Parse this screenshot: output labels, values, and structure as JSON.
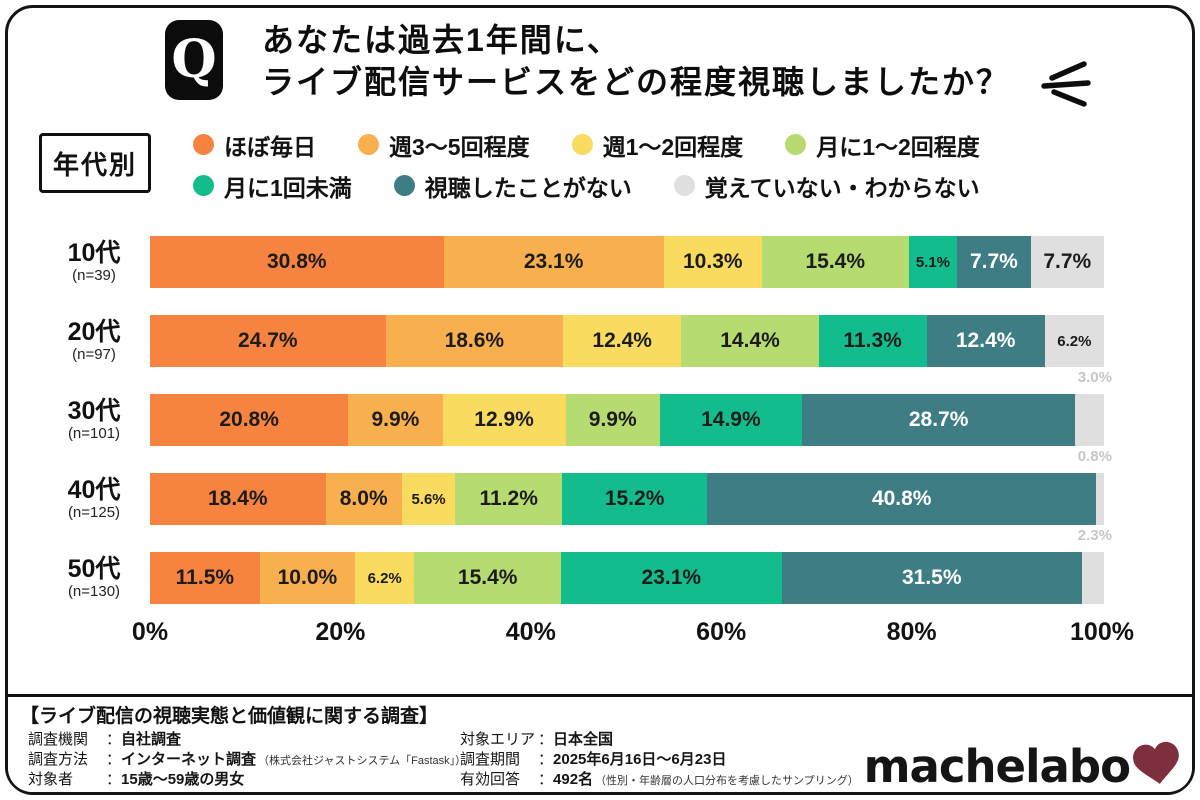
{
  "header": {
    "q_badge": "Q",
    "title_line1": "あなたは過去1年間に、",
    "title_line2": "ライブ配信サービスをどの程度視聴しましたか？"
  },
  "group_label": "年代別",
  "chart_data": {
    "type": "bar",
    "variant": "horizontal-stacked",
    "title": "あなたは過去1年間に、ライブ配信サービスをどの程度視聴しましたか？（年代別）",
    "categories": [
      "10代",
      "20代",
      "30代",
      "40代",
      "50代"
    ],
    "category_notes": [
      "(n=39)",
      "(n=97)",
      "(n=101)",
      "(n=125)",
      "(n=130)"
    ],
    "series": [
      {
        "name": "ほぼ毎日",
        "color": "#F6833F",
        "values": [
          30.8,
          24.7,
          20.8,
          18.4,
          11.5
        ]
      },
      {
        "name": "週3〜5回程度",
        "color": "#F8AF4D",
        "values": [
          23.1,
          18.6,
          9.9,
          8.0,
          10.0
        ]
      },
      {
        "name": "週1〜2回程度",
        "color": "#F9DB60",
        "values": [
          10.3,
          12.4,
          12.9,
          5.6,
          6.2
        ]
      },
      {
        "name": "月に1〜2回程度",
        "color": "#B6DC71",
        "values": [
          15.4,
          14.4,
          9.9,
          11.2,
          15.4
        ]
      },
      {
        "name": "月に1回未満",
        "color": "#12BC8C",
        "values": [
          5.1,
          11.3,
          14.9,
          15.2,
          23.1
        ]
      },
      {
        "name": "視聴したことがない",
        "color": "#3E7D84",
        "values": [
          7.7,
          12.4,
          28.7,
          40.8,
          31.5
        ]
      },
      {
        "name": "覚えていない・わからない",
        "color": "#DFDFDF",
        "values": [
          7.7,
          6.2,
          3.0,
          0.8,
          2.3
        ]
      }
    ],
    "x_ticks": [
      "0%",
      "20%",
      "40%",
      "60%",
      "80%",
      "100%"
    ],
    "xlim": [
      0,
      100
    ],
    "grid": false,
    "legend_position": "top",
    "value_suffix": "%",
    "white_label_series": [
      "視聴したことがない"
    ],
    "outside_label_color": "#c7c7c7"
  },
  "footer": {
    "survey_title": "【ライブ配信の視聴実態と価値観に関する調査】",
    "separator": "：",
    "info_left": [
      {
        "label": "調査機関",
        "value": "自社調査",
        "note": ""
      },
      {
        "label": "調査方法",
        "value": "インターネット調査",
        "note": "（株式会社ジャストシステム「Fastask」）"
      },
      {
        "label": "対象者",
        "value": "15歳〜59歳の男女",
        "note": ""
      }
    ],
    "info_right": [
      {
        "label": "対象エリア",
        "value": "日本全国",
        "note": ""
      },
      {
        "label": "調査期間",
        "value": "2025年6月16日〜6月23日",
        "note": ""
      },
      {
        "label": "有効回答",
        "value": "492名",
        "note": "（性別・年齢層の人口分布を考慮したサンプリング）"
      }
    ],
    "logo_text": "machelabo",
    "logo_heart_color": "#7d2f3e"
  }
}
